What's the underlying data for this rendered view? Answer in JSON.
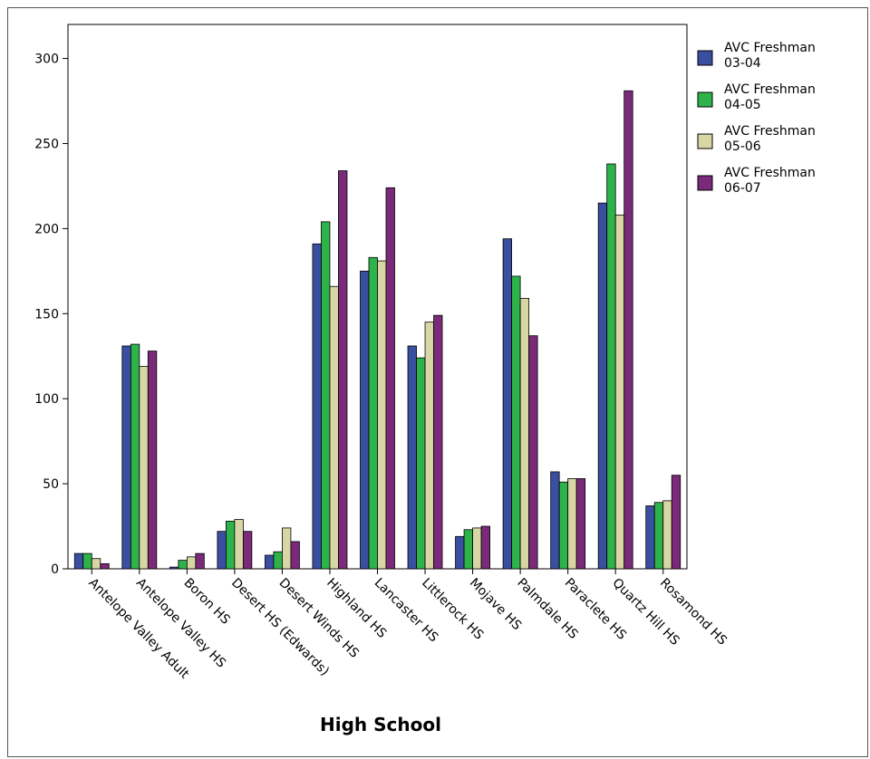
{
  "chart_data": {
    "type": "bar",
    "title": "",
    "xlabel": "High School",
    "ylabel": "",
    "ylim": [
      0,
      320
    ],
    "yticks": [
      0,
      50,
      100,
      150,
      200,
      250,
      300
    ],
    "grid": false,
    "legend_position": "top-right",
    "categories": [
      "Antelope Valley Adult",
      "Antelope Valley HS",
      "Boron HS",
      "Desert HS (Edwards)",
      "Desert Winds HS",
      "Highland HS",
      "Lancaster HS",
      "Littlerock HS",
      "Mojave HS",
      "Palmdale HS",
      "Paraclete HS",
      "Quartz Hill HS",
      "Rosamond HS"
    ],
    "series": [
      {
        "name": "AVC Freshman 03-04",
        "name_lines": [
          "AVC Freshman",
          "03-04"
        ],
        "color": "#3b4fa0",
        "values": [
          9,
          131,
          1,
          22,
          8,
          191,
          175,
          131,
          19,
          194,
          57,
          215,
          37
        ]
      },
      {
        "name": "AVC Freshman 04-05",
        "name_lines": [
          "AVC Freshman",
          "04-05"
        ],
        "color": "#2db34a",
        "values": [
          9,
          132,
          5,
          28,
          10,
          204,
          183,
          124,
          23,
          172,
          51,
          238,
          39
        ]
      },
      {
        "name": "AVC Freshman 05-06",
        "name_lines": [
          "AVC Freshman",
          "05-06"
        ],
        "color": "#d8d6a4",
        "values": [
          6,
          119,
          7,
          29,
          24,
          166,
          181,
          145,
          24,
          159,
          53,
          208,
          40
        ]
      },
      {
        "name": "AVC Freshman 06-07",
        "name_lines": [
          "AVC Freshman",
          "06-07"
        ],
        "color": "#7b2a7a",
        "values": [
          3,
          128,
          9,
          22,
          16,
          234,
          224,
          149,
          25,
          137,
          53,
          281,
          55
        ]
      }
    ]
  }
}
